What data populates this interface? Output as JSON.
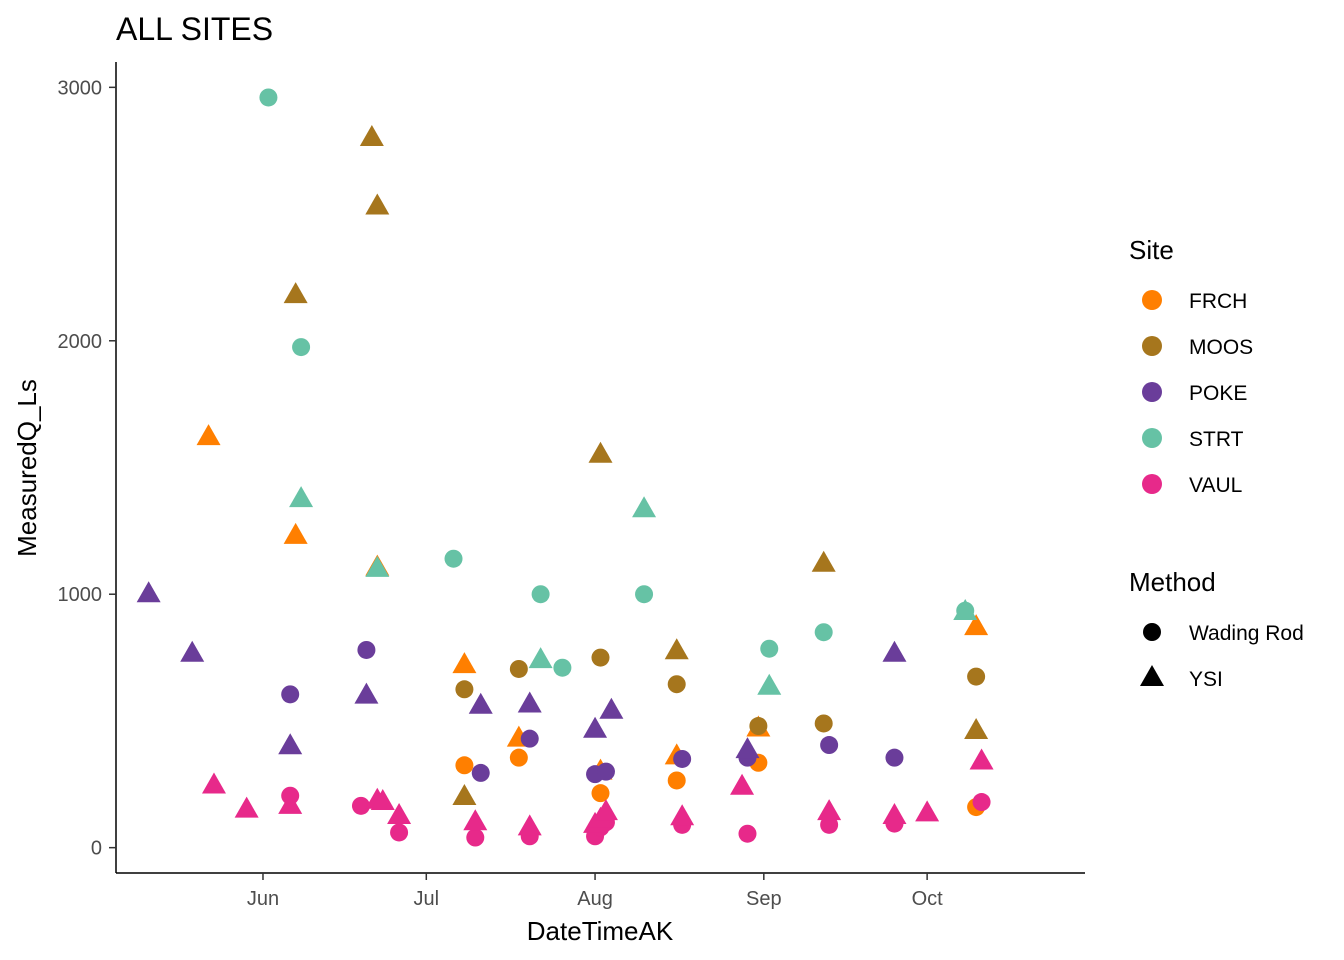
{
  "chart_data": {
    "type": "scatter",
    "title": "ALL SITES",
    "xlabel": "DateTimeAK",
    "ylabel": "MeasuredQ_Ls",
    "xlim": [
      "2020-05-05",
      "2020-10-30"
    ],
    "ylim": [
      -100,
      3100
    ],
    "x_ticks": [
      {
        "date": "2020-06-01",
        "label": "Jun"
      },
      {
        "date": "2020-07-01",
        "label": "Jul"
      },
      {
        "date": "2020-08-01",
        "label": "Aug"
      },
      {
        "date": "2020-09-01",
        "label": "Sep"
      },
      {
        "date": "2020-10-01",
        "label": "Oct"
      }
    ],
    "y_ticks": [
      0,
      1000,
      2000,
      3000
    ],
    "grid": false,
    "legend_position": "right",
    "legends": {
      "site": {
        "title": "Site",
        "items": [
          {
            "label": "FRCH",
            "color": "#FF7F00"
          },
          {
            "label": "MOOS",
            "color": "#A6761D"
          },
          {
            "label": "POKE",
            "color": "#6A3D9A"
          },
          {
            "label": "STRT",
            "color": "#66C2A5"
          },
          {
            "label": "VAUL",
            "color": "#E7298A"
          }
        ]
      },
      "method": {
        "title": "Method",
        "items": [
          {
            "label": "Wading Rod",
            "shape": "circle"
          },
          {
            "label": "YSI",
            "shape": "triangle"
          }
        ]
      }
    },
    "series": [
      {
        "site": "FRCH",
        "method": "Wading Rod",
        "points": [
          [
            "2020-07-08",
            325
          ],
          [
            "2020-07-18",
            355
          ],
          [
            "2020-08-02",
            215
          ],
          [
            "2020-08-16",
            265
          ],
          [
            "2020-08-31",
            335
          ],
          [
            "2020-10-10",
            160
          ]
        ]
      },
      {
        "site": "FRCH",
        "method": "YSI",
        "points": [
          [
            "2020-05-22",
            1620
          ],
          [
            "2020-06-07",
            1230
          ],
          [
            "2020-06-22",
            1105
          ],
          [
            "2020-07-08",
            720
          ],
          [
            "2020-07-18",
            430
          ],
          [
            "2020-08-02",
            300
          ],
          [
            "2020-08-16",
            360
          ],
          [
            "2020-08-31",
            470
          ],
          [
            "2020-10-10",
            870
          ]
        ]
      },
      {
        "site": "MOOS",
        "method": "Wading Rod",
        "points": [
          [
            "2020-07-08",
            625
          ],
          [
            "2020-07-18",
            705
          ],
          [
            "2020-08-02",
            750
          ],
          [
            "2020-08-16",
            645
          ],
          [
            "2020-08-31",
            480
          ],
          [
            "2020-09-12",
            490
          ],
          [
            "2020-10-10",
            675
          ]
        ]
      },
      {
        "site": "MOOS",
        "method": "YSI",
        "points": [
          [
            "2020-06-07",
            2180
          ],
          [
            "2020-06-21",
            2800
          ],
          [
            "2020-06-22",
            2530
          ],
          [
            "2020-07-08",
            200
          ],
          [
            "2020-08-02",
            1550
          ],
          [
            "2020-08-16",
            775
          ],
          [
            "2020-09-12",
            1120
          ],
          [
            "2020-10-10",
            460
          ]
        ]
      },
      {
        "site": "POKE",
        "method": "Wading Rod",
        "points": [
          [
            "2020-06-06",
            605
          ],
          [
            "2020-06-20",
            780
          ],
          [
            "2020-07-11",
            295
          ],
          [
            "2020-07-20",
            430
          ],
          [
            "2020-08-01",
            290
          ],
          [
            "2020-08-03",
            300
          ],
          [
            "2020-08-17",
            350
          ],
          [
            "2020-08-29",
            355
          ],
          [
            "2020-09-13",
            405
          ],
          [
            "2020-09-25",
            355
          ]
        ]
      },
      {
        "site": "POKE",
        "method": "YSI",
        "points": [
          [
            "2020-05-11",
            1000
          ],
          [
            "2020-05-19",
            765
          ],
          [
            "2020-06-06",
            400
          ],
          [
            "2020-06-20",
            600
          ],
          [
            "2020-07-11",
            560
          ],
          [
            "2020-07-20",
            565
          ],
          [
            "2020-08-01",
            465
          ],
          [
            "2020-08-04",
            540
          ],
          [
            "2020-08-29",
            385
          ],
          [
            "2020-09-25",
            765
          ]
        ]
      },
      {
        "site": "STRT",
        "method": "Wading Rod",
        "points": [
          [
            "2020-06-02",
            2960
          ],
          [
            "2020-06-08",
            1975
          ],
          [
            "2020-07-06",
            1140
          ],
          [
            "2020-07-22",
            1000
          ],
          [
            "2020-07-26",
            710
          ],
          [
            "2020-08-10",
            1000
          ],
          [
            "2020-09-02",
            785
          ],
          [
            "2020-09-12",
            850
          ],
          [
            "2020-10-08",
            935
          ]
        ]
      },
      {
        "site": "STRT",
        "method": "YSI",
        "points": [
          [
            "2020-06-08",
            1375
          ],
          [
            "2020-06-22",
            1100
          ],
          [
            "2020-07-22",
            740
          ],
          [
            "2020-08-10",
            1335
          ],
          [
            "2020-09-02",
            635
          ],
          [
            "2020-10-08",
            930
          ]
        ]
      },
      {
        "site": "VAUL",
        "method": "Wading Rod",
        "points": [
          [
            "2020-06-06",
            205
          ],
          [
            "2020-06-19",
            165
          ],
          [
            "2020-06-26",
            60
          ],
          [
            "2020-07-10",
            40
          ],
          [
            "2020-07-20",
            45
          ],
          [
            "2020-08-01",
            45
          ],
          [
            "2020-08-02",
            80
          ],
          [
            "2020-08-03",
            100
          ],
          [
            "2020-08-17",
            90
          ],
          [
            "2020-08-29",
            55
          ],
          [
            "2020-09-13",
            90
          ],
          [
            "2020-09-25",
            95
          ],
          [
            "2020-10-11",
            180
          ]
        ]
      },
      {
        "site": "VAUL",
        "method": "YSI",
        "points": [
          [
            "2020-05-23",
            245
          ],
          [
            "2020-05-29",
            150
          ],
          [
            "2020-06-06",
            165
          ],
          [
            "2020-06-22",
            185
          ],
          [
            "2020-06-23",
            180
          ],
          [
            "2020-06-26",
            125
          ],
          [
            "2020-07-10",
            100
          ],
          [
            "2020-07-20",
            80
          ],
          [
            "2020-08-01",
            90
          ],
          [
            "2020-08-02",
            110
          ],
          [
            "2020-08-03",
            140
          ],
          [
            "2020-08-17",
            120
          ],
          [
            "2020-08-28",
            240
          ],
          [
            "2020-09-13",
            140
          ],
          [
            "2020-09-25",
            125
          ],
          [
            "2020-10-01",
            135
          ],
          [
            "2020-10-11",
            340
          ]
        ]
      }
    ]
  }
}
